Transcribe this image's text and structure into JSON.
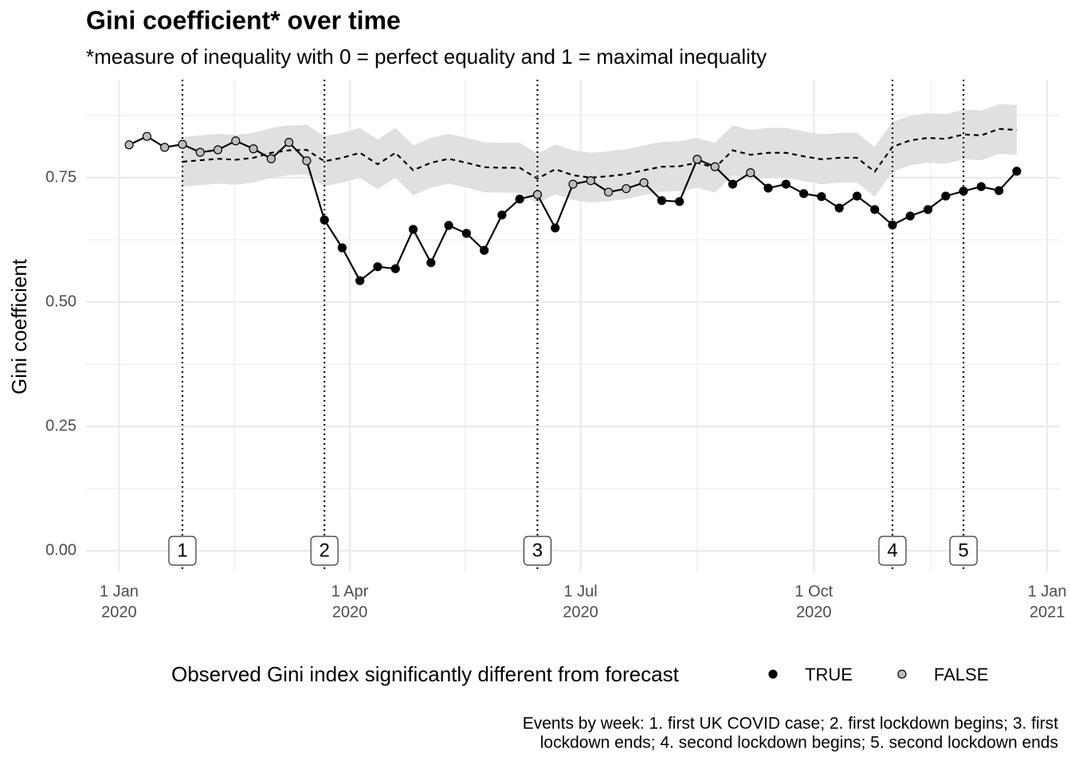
{
  "chart_data": {
    "type": "line",
    "title": "Gini coefficient* over time",
    "subtitle": "*measure of inequality with 0 = perfect equality and 1 = maximal inequality",
    "y_label": "Gini coefficient",
    "x": [
      "2020-01-05",
      "2020-01-12",
      "2020-01-19",
      "2020-01-26",
      "2020-02-02",
      "2020-02-09",
      "2020-02-16",
      "2020-02-23",
      "2020-03-01",
      "2020-03-08",
      "2020-03-15",
      "2020-03-22",
      "2020-03-29",
      "2020-04-05",
      "2020-04-12",
      "2020-04-19",
      "2020-04-26",
      "2020-05-03",
      "2020-05-10",
      "2020-05-17",
      "2020-05-24",
      "2020-05-31",
      "2020-06-07",
      "2020-06-14",
      "2020-06-21",
      "2020-06-28",
      "2020-07-05",
      "2020-07-12",
      "2020-07-19",
      "2020-07-26",
      "2020-08-02",
      "2020-08-09",
      "2020-08-16",
      "2020-08-23",
      "2020-08-30",
      "2020-09-06",
      "2020-09-13",
      "2020-09-20",
      "2020-09-27",
      "2020-10-04",
      "2020-10-11",
      "2020-10-18",
      "2020-10-25",
      "2020-11-01",
      "2020-11-08",
      "2020-11-15",
      "2020-11-22",
      "2020-11-29",
      "2020-12-06",
      "2020-12-13",
      "2020-12-20"
    ],
    "observed": {
      "color": "#000000",
      "values": [
        0.816,
        0.833,
        0.811,
        0.817,
        0.801,
        0.806,
        0.824,
        0.808,
        0.788,
        0.821,
        0.784,
        0.665,
        0.609,
        0.543,
        0.571,
        0.567,
        0.646,
        0.579,
        0.654,
        0.638,
        0.604,
        0.675,
        0.707,
        0.716,
        0.649,
        0.737,
        0.744,
        0.721,
        0.728,
        0.74,
        0.704,
        0.702,
        0.787,
        0.772,
        0.737,
        0.76,
        0.729,
        0.737,
        0.718,
        0.712,
        0.689,
        0.713,
        0.686,
        0.655,
        0.673,
        0.686,
        0.713,
        0.723,
        0.732,
        0.724,
        0.763
      ],
      "significant": [
        false,
        false,
        false,
        false,
        false,
        false,
        false,
        false,
        false,
        false,
        false,
        true,
        true,
        true,
        true,
        true,
        true,
        true,
        true,
        true,
        true,
        true,
        true,
        false,
        true,
        false,
        false,
        false,
        false,
        false,
        true,
        true,
        false,
        false,
        true,
        false,
        true,
        true,
        true,
        true,
        true,
        true,
        true,
        true,
        true,
        true,
        true,
        true,
        true,
        true,
        true
      ]
    },
    "forecast": {
      "color": "#000000",
      "band_color": "#e0e0e0",
      "values": [
        null,
        null,
        null,
        0.782,
        0.785,
        0.788,
        0.786,
        0.79,
        0.8,
        0.805,
        0.806,
        0.783,
        0.79,
        0.8,
        0.777,
        0.8,
        0.765,
        0.78,
        0.788,
        0.78,
        0.771,
        0.77,
        0.77,
        0.748,
        0.767,
        0.755,
        0.75,
        0.753,
        0.757,
        0.765,
        0.772,
        0.773,
        0.78,
        0.77,
        0.805,
        0.796,
        0.8,
        0.8,
        0.793,
        0.787,
        0.79,
        0.79,
        0.762,
        0.812,
        0.825,
        0.83,
        0.828,
        0.837,
        0.835,
        0.848,
        0.846
      ],
      "upper": [
        null,
        null,
        null,
        0.832,
        0.835,
        0.838,
        0.836,
        0.84,
        0.85,
        0.855,
        0.856,
        0.833,
        0.84,
        0.85,
        0.827,
        0.85,
        0.815,
        0.83,
        0.838,
        0.83,
        0.821,
        0.82,
        0.82,
        0.798,
        0.817,
        0.805,
        0.8,
        0.803,
        0.807,
        0.815,
        0.822,
        0.823,
        0.83,
        0.82,
        0.855,
        0.846,
        0.85,
        0.85,
        0.843,
        0.837,
        0.84,
        0.84,
        0.812,
        0.862,
        0.875,
        0.88,
        0.878,
        0.887,
        0.885,
        0.898,
        0.896
      ],
      "lower": [
        null,
        null,
        null,
        0.732,
        0.735,
        0.738,
        0.736,
        0.74,
        0.75,
        0.755,
        0.756,
        0.733,
        0.74,
        0.75,
        0.727,
        0.75,
        0.715,
        0.73,
        0.738,
        0.73,
        0.721,
        0.72,
        0.72,
        0.698,
        0.717,
        0.705,
        0.7,
        0.703,
        0.707,
        0.715,
        0.722,
        0.723,
        0.73,
        0.72,
        0.755,
        0.746,
        0.75,
        0.75,
        0.743,
        0.737,
        0.74,
        0.74,
        0.712,
        0.762,
        0.775,
        0.78,
        0.778,
        0.787,
        0.785,
        0.798,
        0.796
      ]
    },
    "events": [
      {
        "date": "2020-01-26",
        "label": "1"
      },
      {
        "date": "2020-03-22",
        "label": "2"
      },
      {
        "date": "2020-06-14",
        "label": "3"
      },
      {
        "date": "2020-11-01",
        "label": "4"
      },
      {
        "date": "2020-11-29",
        "label": "5"
      }
    ],
    "xlim": [
      "2019-12-19",
      "2021-01-06"
    ],
    "xticks": [
      {
        "value": "2020-01-01",
        "label": [
          "1 Jan",
          "2020"
        ]
      },
      {
        "value": "2020-04-01",
        "label": [
          "1 Apr",
          "2020"
        ]
      },
      {
        "value": "2020-07-01",
        "label": [
          "1 Jul",
          "2020"
        ]
      },
      {
        "value": "2020-10-01",
        "label": [
          "1 Oct",
          "2020"
        ]
      },
      {
        "value": "2021-01-01",
        "label": [
          "1 Jan",
          "2021"
        ]
      }
    ],
    "ylim": [
      -0.043,
      0.947
    ],
    "yticks": [
      {
        "value": 0,
        "label": "0.00"
      },
      {
        "value": 0.25,
        "label": "0.25"
      },
      {
        "value": 0.5,
        "label": "0.50"
      },
      {
        "value": 0.75,
        "label": "0.75"
      }
    ],
    "grid": true,
    "legend": {
      "position": "bottom",
      "title": "Observed Gini index significantly different from forecast",
      "entries": [
        {
          "label": "TRUE",
          "value": true,
          "color": "#000000"
        },
        {
          "label": "FALSE",
          "value": false,
          "color": "#bdbdbd"
        }
      ]
    },
    "caption": [
      "Events by week: 1. first UK COVID case; 2. first lockdown begins; 3. first",
      "lockdown ends; 4. second lockdown begins; 5. second lockdown ends"
    ]
  }
}
